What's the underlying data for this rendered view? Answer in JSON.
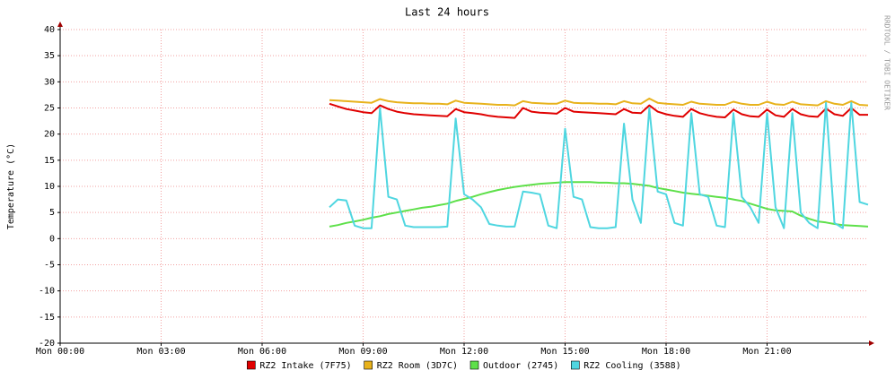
{
  "chart_data": {
    "type": "line",
    "title": "Last 24 hours",
    "y_label": "Temperature (°C)",
    "credit": "RRDTOOL / TOBI OETIKER",
    "xlim": [
      0,
      24
    ],
    "xticks": [
      {
        "value": 0,
        "label": "Mon 00:00"
      },
      {
        "value": 3,
        "label": "Mon 03:00"
      },
      {
        "value": 6,
        "label": "Mon 06:00"
      },
      {
        "value": 9,
        "label": "Mon 09:00"
      },
      {
        "value": 12,
        "label": "Mon 12:00"
      },
      {
        "value": 15,
        "label": "Mon 15:00"
      },
      {
        "value": 18,
        "label": "Mon 18:00"
      },
      {
        "value": 21,
        "label": "Mon 21:00"
      }
    ],
    "ylim": [
      -20,
      40
    ],
    "yticks": [
      -20,
      -15,
      -10,
      -5,
      0,
      5,
      10,
      15,
      20,
      25,
      30,
      35,
      40
    ],
    "grid": true,
    "x": [
      8,
      8.25,
      8.5,
      8.75,
      9,
      9.25,
      9.5,
      9.75,
      10,
      10.25,
      10.5,
      10.75,
      11,
      11.25,
      11.5,
      11.75,
      12,
      12.25,
      12.5,
      12.75,
      13,
      13.25,
      13.5,
      13.75,
      14,
      14.25,
      14.5,
      14.75,
      15,
      15.25,
      15.5,
      15.75,
      16,
      16.25,
      16.5,
      16.75,
      17,
      17.25,
      17.5,
      17.75,
      18,
      18.25,
      18.5,
      18.75,
      19,
      19.25,
      19.5,
      19.75,
      20,
      20.25,
      20.5,
      20.75,
      21,
      21.25,
      21.5,
      21.75,
      22,
      22.25,
      22.5,
      22.75,
      23,
      23.25,
      23.5,
      23.75,
      24
    ],
    "series": [
      {
        "name": "RZ2 Intake (7F75)",
        "color": "#e00000",
        "values": [
          25.8,
          25.3,
          24.8,
          24.5,
          24.2,
          24,
          25.5,
          24.8,
          24.3,
          24,
          23.8,
          23.7,
          23.6,
          23.5,
          23.4,
          24.8,
          24.2,
          24,
          23.8,
          23.5,
          23.3,
          23.2,
          23.1,
          25,
          24.3,
          24.1,
          24,
          23.9,
          25,
          24.3,
          24.2,
          24.1,
          24,
          23.9,
          23.8,
          24.8,
          24.1,
          24,
          25.5,
          24.3,
          23.8,
          23.5,
          23.3,
          24.8,
          24,
          23.6,
          23.3,
          23.2,
          24.7,
          23.8,
          23.4,
          23.3,
          24.7,
          23.6,
          23.3,
          24.8,
          23.8,
          23.4,
          23.3,
          24.9,
          23.8,
          23.5,
          25,
          23.7,
          23.7
        ]
      },
      {
        "name": "RZ2 Room (3D7C)",
        "color": "#e8b21c",
        "values": [
          26.5,
          26.4,
          26.3,
          26.2,
          26.1,
          26,
          26.7,
          26.3,
          26.1,
          26,
          25.9,
          25.9,
          25.8,
          25.8,
          25.7,
          26.4,
          26,
          25.9,
          25.8,
          25.7,
          25.6,
          25.6,
          25.5,
          26.3,
          26,
          25.9,
          25.8,
          25.8,
          26.4,
          26,
          25.9,
          25.9,
          25.8,
          25.8,
          25.7,
          26.3,
          25.9,
          25.8,
          26.8,
          26,
          25.8,
          25.7,
          25.6,
          26.2,
          25.8,
          25.7,
          25.6,
          25.6,
          26.2,
          25.8,
          25.6,
          25.6,
          26.2,
          25.7,
          25.6,
          26.2,
          25.7,
          25.6,
          25.5,
          26.3,
          25.8,
          25.6,
          26.3,
          25.6,
          25.5
        ]
      },
      {
        "name": "Outdoor (2745)",
        "color": "#5ee04a",
        "values": [
          2.3,
          2.6,
          3,
          3.3,
          3.6,
          4,
          4.3,
          4.7,
          5,
          5.3,
          5.6,
          5.9,
          6.1,
          6.4,
          6.7,
          7.2,
          7.6,
          8,
          8.5,
          8.9,
          9.3,
          9.6,
          9.9,
          10.1,
          10.3,
          10.5,
          10.6,
          10.7,
          10.8,
          10.8,
          10.8,
          10.8,
          10.7,
          10.7,
          10.6,
          10.6,
          10.5,
          10.3,
          10.1,
          9.7,
          9.4,
          9.1,
          8.8,
          8.6,
          8.4,
          8.2,
          8,
          7.8,
          7.5,
          7.2,
          6.7,
          6.2,
          5.7,
          5.4,
          5.3,
          5.2,
          4.4,
          3.8,
          3.3,
          3.1,
          2.8,
          2.6,
          2.5,
          2.4,
          2.3
        ]
      },
      {
        "name": "RZ2 Cooling (3588)",
        "color": "#4fd6e0",
        "values": [
          6,
          7.5,
          7.3,
          2.5,
          2,
          2,
          25,
          8,
          7.5,
          2.5,
          2.2,
          2.2,
          2.2,
          2.2,
          2.3,
          23,
          8.5,
          7.5,
          6,
          2.8,
          2.5,
          2.3,
          2.3,
          9,
          8.8,
          8.5,
          2.5,
          2,
          21,
          8,
          7.5,
          2.2,
          2,
          2,
          2.2,
          22,
          7.5,
          3,
          25,
          9,
          8.5,
          3,
          2.5,
          24,
          8.5,
          8,
          2.5,
          2.2,
          24,
          8,
          6,
          3,
          24,
          6,
          2,
          24,
          5,
          3,
          2,
          26,
          3,
          2,
          26,
          7,
          6.5
        ]
      }
    ]
  }
}
